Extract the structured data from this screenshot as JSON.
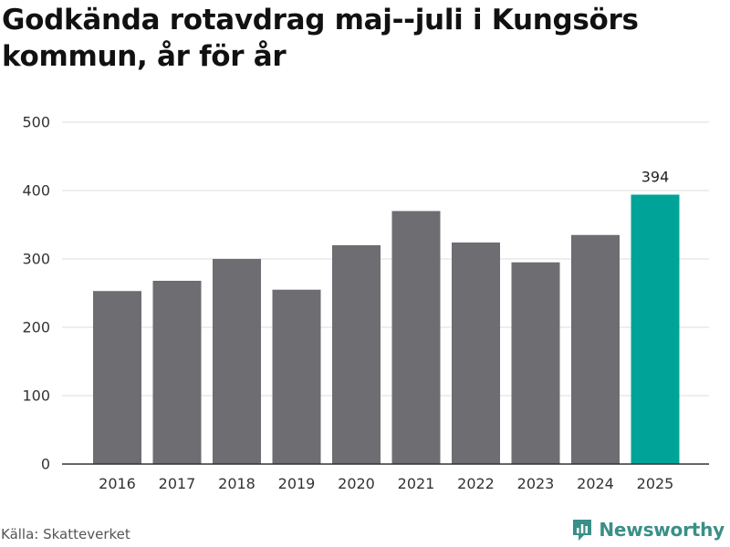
{
  "title": "Godkända rotavdrag maj--juli i Kungsörs kommun, år för år",
  "source": "Källa: Skatteverket",
  "brand": {
    "name": "Newsworthy",
    "icon": "newsworthy-logo-icon",
    "color": "#3a8f88"
  },
  "colors": {
    "bar": "#6d6d72",
    "highlight": "#00a398",
    "grid": "#dddddd",
    "axis": "#333333"
  },
  "chart_data": {
    "type": "bar",
    "title": "Godkända rotavdrag maj--juli i Kungsörs kommun, år för år",
    "xlabel": "",
    "ylabel": "",
    "categories": [
      "2016",
      "2017",
      "2018",
      "2019",
      "2020",
      "2021",
      "2022",
      "2023",
      "2024",
      "2025"
    ],
    "values": [
      253,
      268,
      300,
      255,
      320,
      370,
      324,
      295,
      335,
      394
    ],
    "ylim": [
      0,
      500
    ],
    "yticks": [
      0,
      100,
      200,
      300,
      400,
      500
    ],
    "highlight_index": 9,
    "data_labels": [
      {
        "index": 9,
        "text": "394"
      }
    ],
    "grid": true,
    "legend": "none"
  }
}
